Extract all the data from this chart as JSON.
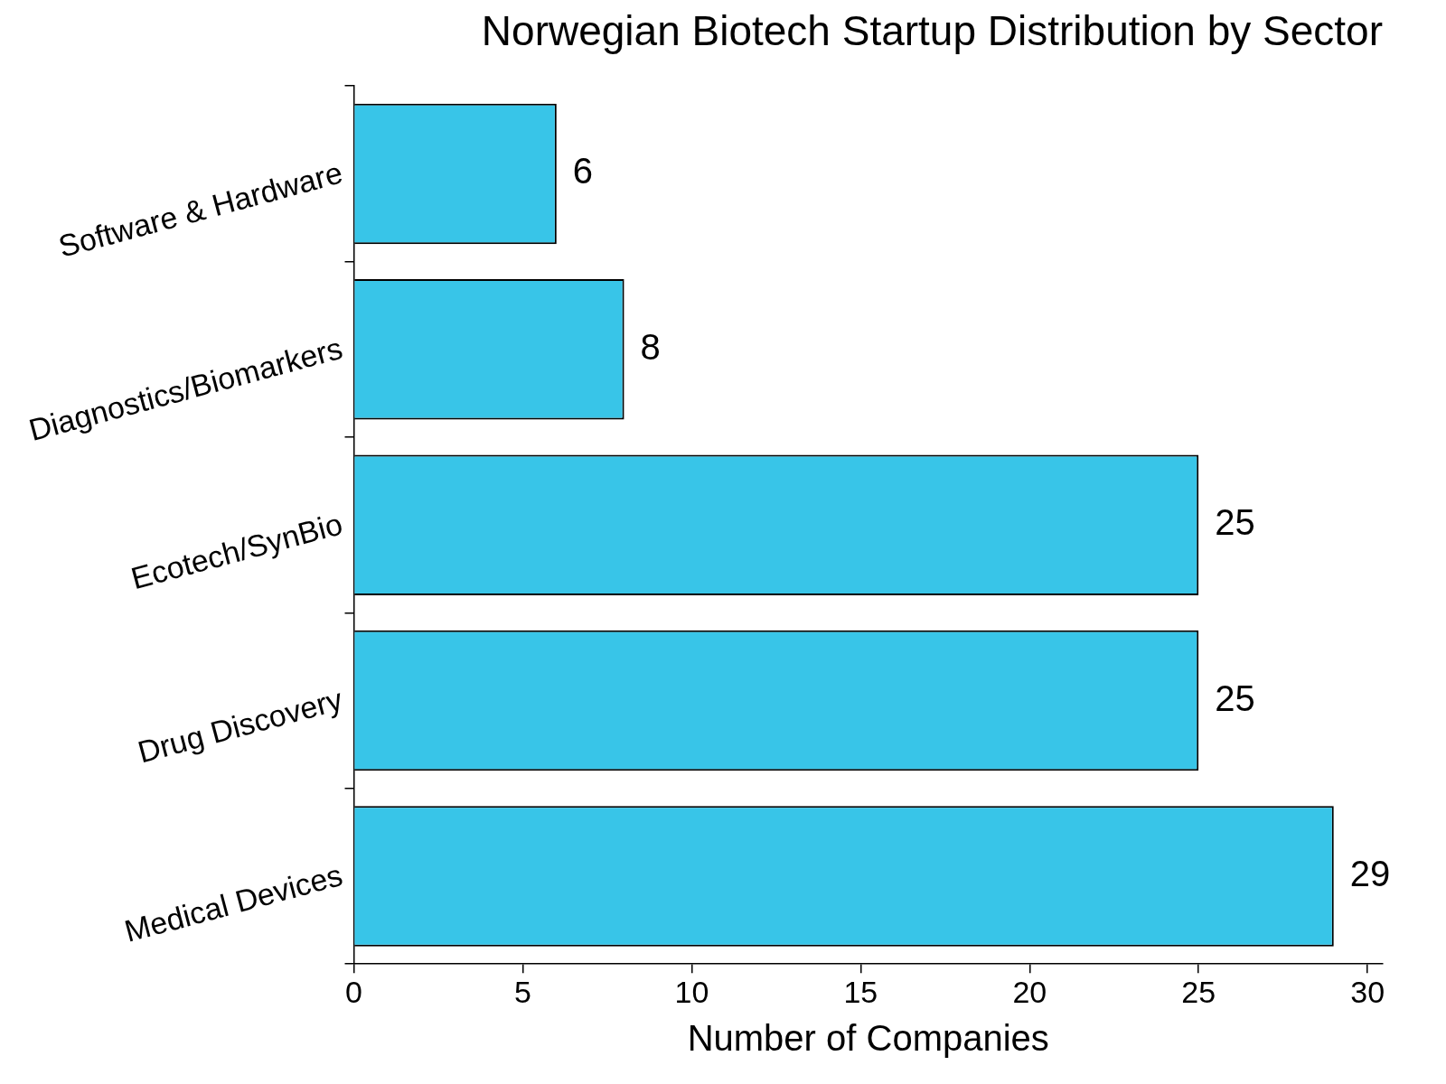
{
  "chart_data": {
    "type": "bar",
    "orientation": "horizontal",
    "title": "Norwegian Biotech Startup Distribution by Sector",
    "xlabel": "Number of Companies",
    "categories": [
      "Software & Hardware",
      "Diagnostics/Biomarkers",
      "Ecotech/SynBio",
      "Drug Discovery",
      "Medical Devices"
    ],
    "values": [
      6,
      8,
      25,
      25,
      29
    ],
    "color": "#38c5e8",
    "xlim": [
      0,
      30.45
    ],
    "xticks": [
      0,
      5,
      10,
      15,
      20,
      25,
      30
    ],
    "data_labels": true
  }
}
